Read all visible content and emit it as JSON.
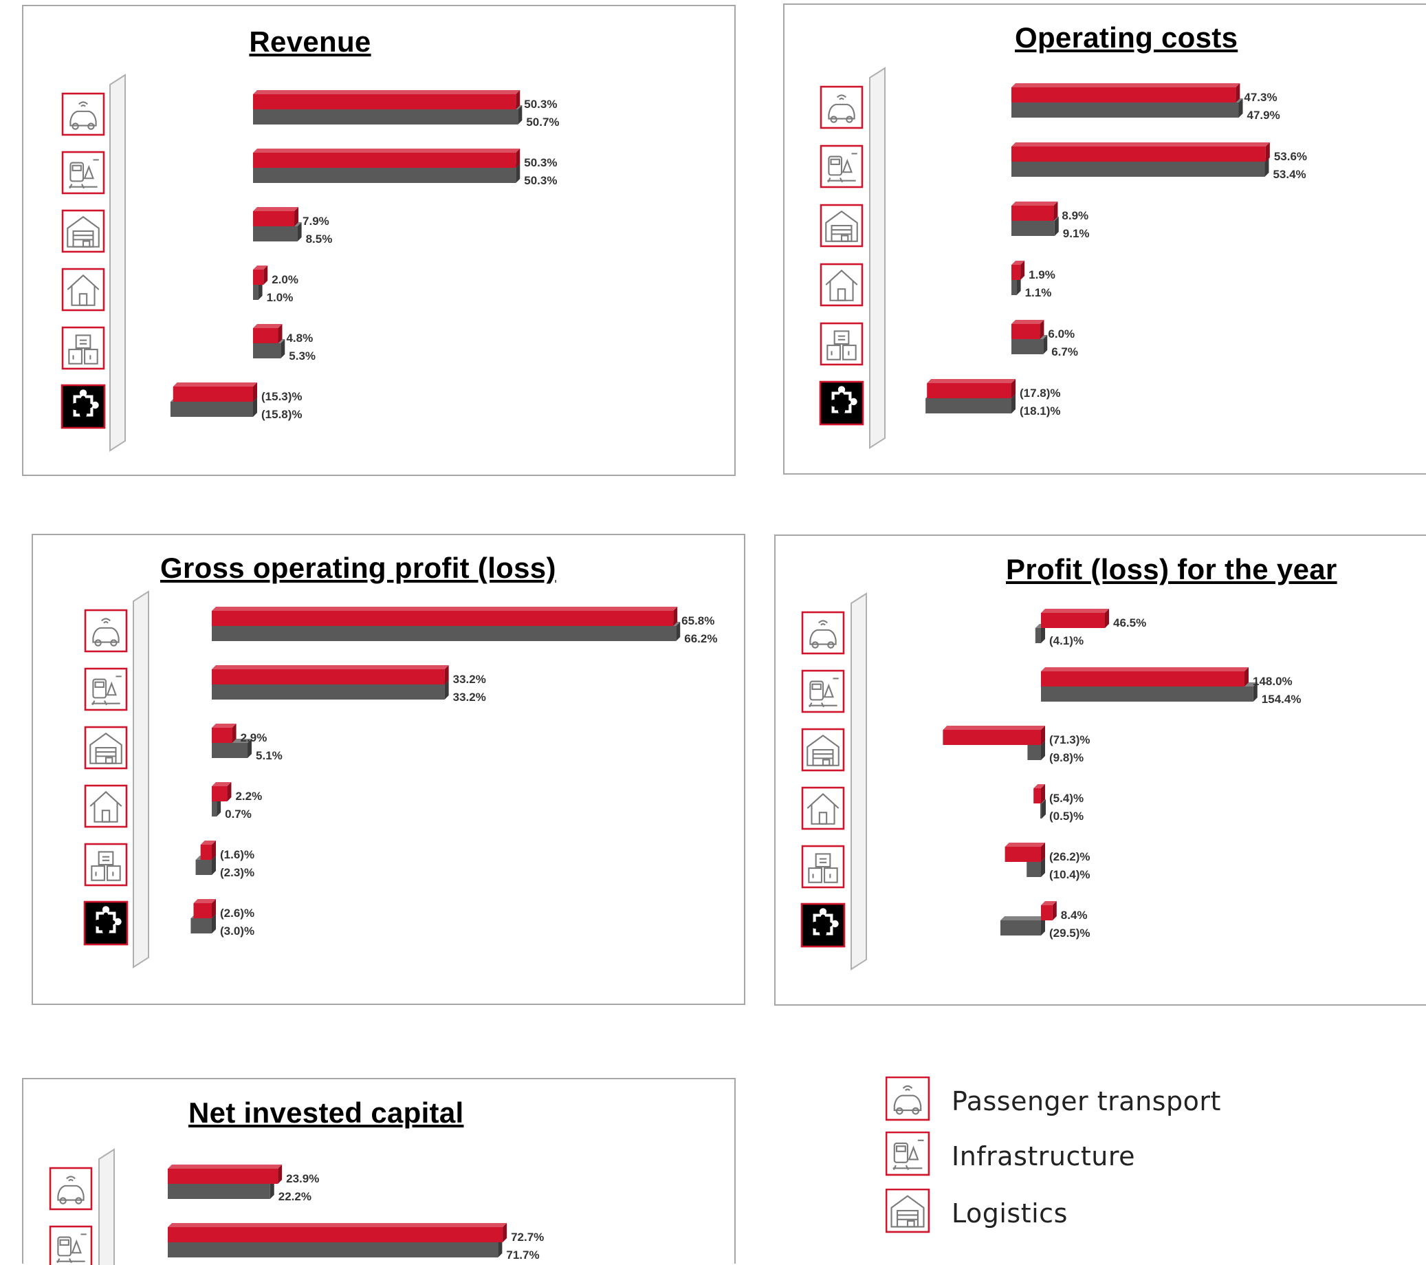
{
  "colors": {
    "current": "#d0142c",
    "previous": "#595959",
    "icon_border": "#d0142c"
  },
  "segments": [
    {
      "key": "passenger",
      "icon": "passenger-car-icon"
    },
    {
      "key": "infrastructure",
      "icon": "infrastructure-train-icon"
    },
    {
      "key": "logistics",
      "icon": "logistics-warehouse-icon"
    },
    {
      "key": "real_estate",
      "icon": "real-estate-house-icon"
    },
    {
      "key": "other",
      "icon": "other-services-buildings-icon"
    },
    {
      "key": "eliminations",
      "icon": "puzzle-piece-icon"
    }
  ],
  "chart_data": [
    {
      "type": "bar",
      "title": "Revenue",
      "series": [
        {
          "name": "current",
          "values": [
            50.3,
            50.3,
            7.9,
            2.0,
            4.8,
            -15.3
          ],
          "labels": [
            "50.3%",
            "50.3%",
            "7.9%",
            "2.0%",
            "4.8%",
            "(15.3)%"
          ]
        },
        {
          "name": "previous",
          "values": [
            50.7,
            50.3,
            8.5,
            1.0,
            5.3,
            -15.8
          ],
          "labels": [
            "50.7%",
            "50.3%",
            "8.5%",
            "1.0%",
            "5.3%",
            "(15.8)%"
          ]
        }
      ]
    },
    {
      "type": "bar",
      "title": "Operating costs",
      "series": [
        {
          "name": "current",
          "values": [
            47.3,
            53.6,
            8.9,
            1.9,
            6.0,
            -17.8
          ],
          "labels": [
            "47.3%",
            "53.6%",
            "8.9%",
            "1.9%",
            "6.0%",
            "(17.8)%"
          ]
        },
        {
          "name": "previous",
          "values": [
            47.9,
            53.4,
            9.1,
            1.1,
            6.7,
            -18.1
          ],
          "labels": [
            "47.9%",
            "53.4%",
            "9.1%",
            "1.1%",
            "6.7%",
            "(18.1)%"
          ]
        }
      ]
    },
    {
      "type": "bar",
      "title": "Gross operating profit (loss)",
      "series": [
        {
          "name": "current",
          "values": [
            65.8,
            33.2,
            2.9,
            2.2,
            -1.6,
            -2.6
          ],
          "labels": [
            "65.8%",
            "33.2%",
            "2.9%",
            "2.2%",
            "(1.6)%",
            "(2.6)%"
          ]
        },
        {
          "name": "previous",
          "values": [
            66.2,
            33.2,
            5.1,
            0.7,
            -2.3,
            -3.0
          ],
          "labels": [
            "66.2%",
            "33.2%",
            "5.1%",
            "0.7%",
            "(2.3)%",
            "(3.0)%"
          ]
        }
      ]
    },
    {
      "type": "bar",
      "title": "Profit (loss) for the year",
      "series": [
        {
          "name": "current",
          "values": [
            46.5,
            148.0,
            -71.3,
            -5.4,
            -26.2,
            8.4
          ],
          "labels": [
            "46.5%",
            "148.0%",
            "(71.3)%",
            "(5.4)%",
            "(26.2)%",
            "8.4%"
          ]
        },
        {
          "name": "previous",
          "values": [
            -4.1,
            154.4,
            -9.8,
            -0.5,
            -10.4,
            -29.5
          ],
          "labels": [
            "(4.1)%",
            "154.4%",
            "(9.8)%",
            "(0.5)%",
            "(10.4)%",
            "(29.5)%"
          ]
        }
      ]
    },
    {
      "type": "bar",
      "title": "Net invested capital",
      "series": [
        {
          "name": "current",
          "values": [
            23.9,
            72.7
          ],
          "labels": [
            "23.9%",
            "72.7%"
          ]
        },
        {
          "name": "previous",
          "values": [
            22.2,
            71.7
          ],
          "labels": [
            "22.2%",
            "71.7%"
          ]
        }
      ]
    }
  ],
  "legend": [
    {
      "label": "Passenger transport",
      "icon": "passenger-car-icon"
    },
    {
      "label": "Infrastructure",
      "icon": "infrastructure-train-icon"
    },
    {
      "label": "Logistics",
      "icon": "logistics-warehouse-icon"
    }
  ]
}
